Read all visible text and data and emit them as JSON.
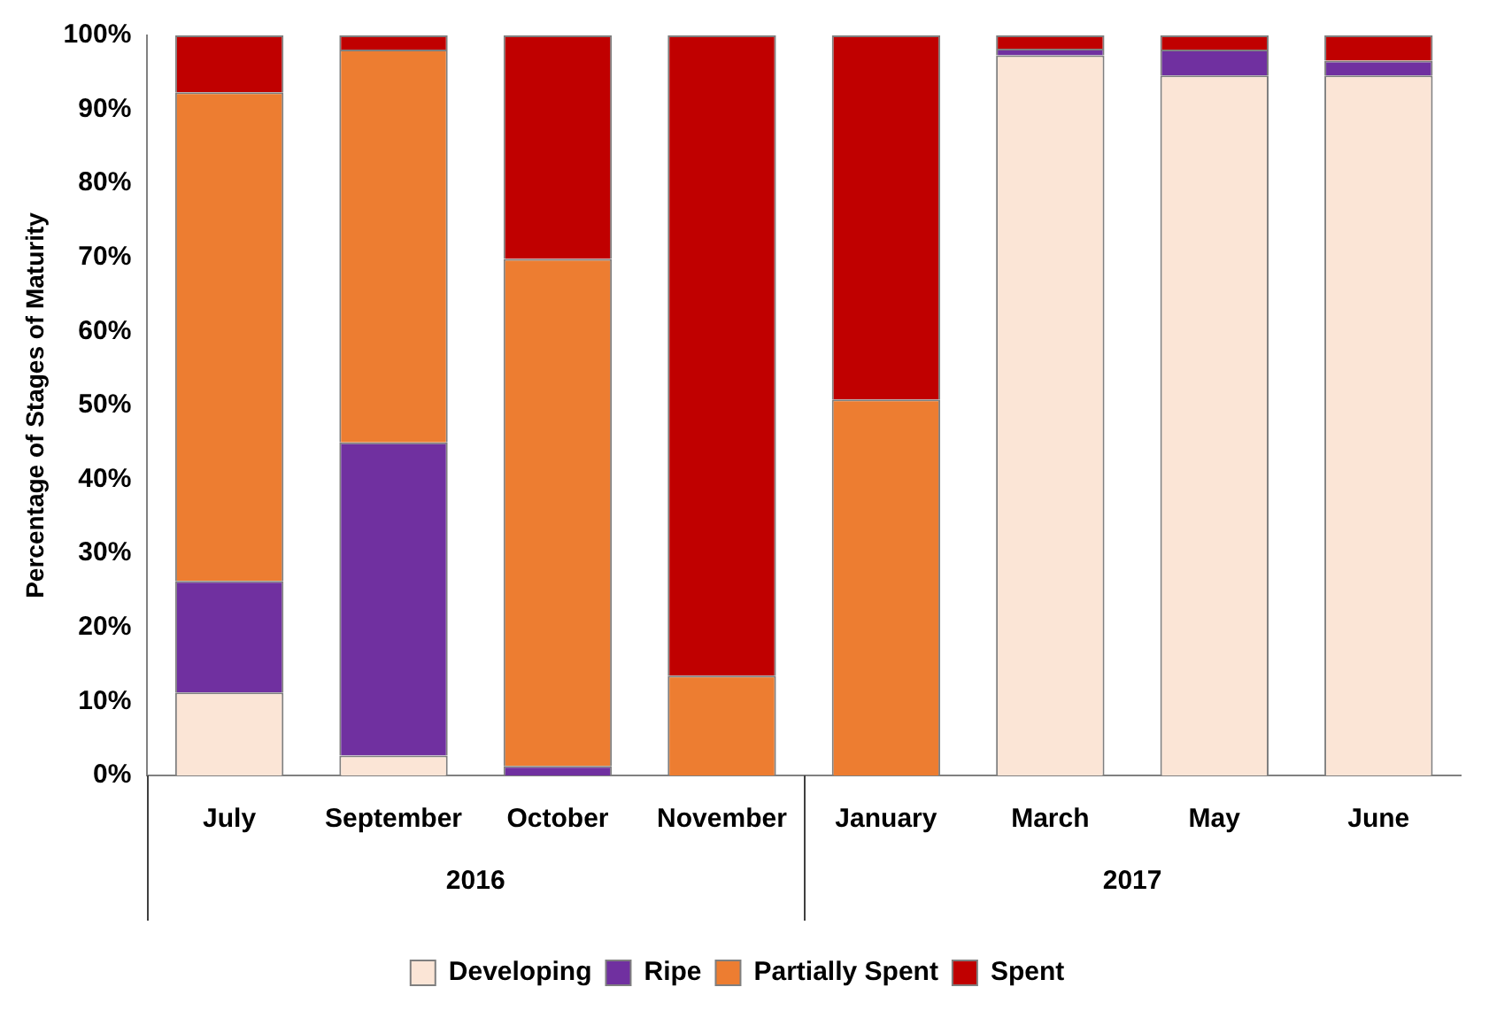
{
  "chart_data": {
    "type": "bar",
    "stacked": true,
    "ylabel": "Percentage of Stages of Maturity",
    "categories": [
      "July",
      "September",
      "October",
      "November",
      "January",
      "March",
      "May",
      "June"
    ],
    "series": [
      {
        "name": "Developing",
        "color": "#fbe5d6",
        "values": [
          11.2,
          2.7,
          0,
          0,
          0,
          97.3,
          94.6,
          94.6
        ]
      },
      {
        "name": "Ripe",
        "color": "#7030a0",
        "values": [
          15.1,
          42.3,
          1.3,
          0,
          0,
          0.9,
          3.5,
          2.0
        ]
      },
      {
        "name": "Partially Spent",
        "color": "#ed7d31",
        "values": [
          66.0,
          53.1,
          68.5,
          13.5,
          50.8,
          0,
          0,
          0
        ]
      },
      {
        "name": "Spent",
        "color": "#c00000",
        "values": [
          7.7,
          1.9,
          30.2,
          86.5,
          49.2,
          1.8,
          1.9,
          3.4
        ]
      }
    ],
    "ylim": [
      0,
      100
    ],
    "yticks": [
      {
        "value": 0,
        "label": "0%"
      },
      {
        "value": 10,
        "label": "10%"
      },
      {
        "value": 20,
        "label": "20%"
      },
      {
        "value": 30,
        "label": "30%"
      },
      {
        "value": 40,
        "label": "40%"
      },
      {
        "value": 50,
        "label": "50%"
      },
      {
        "value": 60,
        "label": "60%"
      },
      {
        "value": 70,
        "label": "70%"
      },
      {
        "value": 80,
        "label": "80%"
      },
      {
        "value": 90,
        "label": "90%"
      },
      {
        "value": 100,
        "label": "100%"
      }
    ],
    "annotations": [
      "2016",
      "2017"
    ],
    "grid": false,
    "legend": "bottom"
  }
}
